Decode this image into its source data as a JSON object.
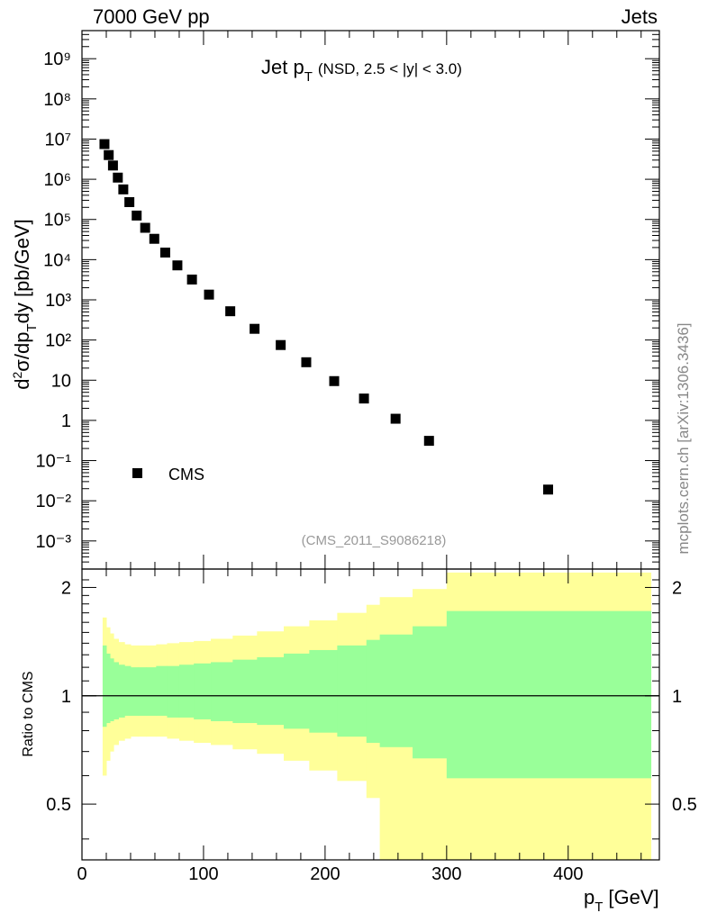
{
  "header": {
    "left": "7000 GeV pp",
    "right": "Jets"
  },
  "side_text": "mcplots.cern.ch [arXiv:1306.3436]",
  "chart_data": [
    {
      "type": "scatter",
      "title_main": "Jet p",
      "title_sub": "T",
      "title_cond": "(NSD, 2.5 < |y| < 3.0)",
      "ylabel": "d²σ/dp_T dy [pb/GeV]",
      "yscale": "log",
      "ylim": [
        0.0002,
        5000000000
      ],
      "xlim": [
        0,
        475
      ],
      "ytick_labels": [
        "10⁻³",
        "10⁻²",
        "10⁻¹",
        "1",
        "10",
        "10²",
        "10³",
        "10⁴",
        "10⁵",
        "10⁶",
        "10⁷",
        "10⁸",
        "10⁹"
      ],
      "ytick_values": [
        0.001,
        0.01,
        0.1,
        1,
        10,
        100,
        1000,
        10000,
        100000,
        1000000,
        10000000,
        100000000,
        1000000000
      ],
      "legend": {
        "label": "CMS",
        "placement": "bottom-left"
      },
      "watermark": "(CMS_2011_S9086218)",
      "series": [
        {
          "name": "CMS",
          "points": [
            {
              "x": 18.5,
              "y": 7500000
            },
            {
              "x": 22,
              "y": 4000000
            },
            {
              "x": 25.5,
              "y": 2200000
            },
            {
              "x": 29.5,
              "y": 1100000
            },
            {
              "x": 34,
              "y": 560000
            },
            {
              "x": 39,
              "y": 270000
            },
            {
              "x": 45,
              "y": 125000
            },
            {
              "x": 52,
              "y": 62000
            },
            {
              "x": 59.5,
              "y": 33000
            },
            {
              "x": 68.5,
              "y": 15000
            },
            {
              "x": 78.5,
              "y": 7200
            },
            {
              "x": 90.5,
              "y": 3200
            },
            {
              "x": 104.5,
              "y": 1350
            },
            {
              "x": 122,
              "y": 520
            },
            {
              "x": 142,
              "y": 190
            },
            {
              "x": 163.5,
              "y": 75
            },
            {
              "x": 184.5,
              "y": 28
            },
            {
              "x": 207.5,
              "y": 9.5
            },
            {
              "x": 232,
              "y": 3.5
            },
            {
              "x": 258,
              "y": 1.1
            },
            {
              "x": 285.5,
              "y": 0.31
            },
            {
              "x": 383.5,
              "y": 0.019
            }
          ]
        }
      ]
    },
    {
      "type": "area",
      "ylabel": "Ratio to CMS",
      "xlabel": "p_T [GeV]",
      "xlim": [
        0,
        475
      ],
      "ylim": [
        0.35,
        2.25
      ],
      "xtick_labels": [
        "0",
        "100",
        "200",
        "300",
        "400"
      ],
      "xtick_values": [
        0,
        100,
        200,
        300,
        400
      ],
      "ytick_labels": [
        "0.5",
        "1",
        "2"
      ],
      "ytick_values": [
        0.5,
        1,
        2
      ],
      "reference": 1,
      "colors": {
        "outer_band": "#ffff99",
        "inner_band": "#99ff99"
      },
      "bins": [
        {
          "x0": 17,
          "x1": 20,
          "inner_hi": 1.38,
          "inner_lo": 0.82,
          "outer_hi": 1.65,
          "outer_lo": 0.6
        },
        {
          "x0": 20,
          "x1": 23,
          "inner_hi": 1.31,
          "inner_lo": 0.84,
          "outer_hi": 1.55,
          "outer_lo": 0.66
        },
        {
          "x0": 23,
          "x1": 26,
          "inner_hi": 1.27,
          "inner_lo": 0.85,
          "outer_hi": 1.49,
          "outer_lo": 0.7
        },
        {
          "x0": 26,
          "x1": 30,
          "inner_hi": 1.24,
          "inner_lo": 0.86,
          "outer_hi": 1.44,
          "outer_lo": 0.73
        },
        {
          "x0": 30,
          "x1": 35,
          "inner_hi": 1.22,
          "inner_lo": 0.87,
          "outer_hi": 1.41,
          "outer_lo": 0.75
        },
        {
          "x0": 35,
          "x1": 40,
          "inner_hi": 1.21,
          "inner_lo": 0.88,
          "outer_hi": 1.39,
          "outer_lo": 0.76
        },
        {
          "x0": 40,
          "x1": 46,
          "inner_hi": 1.2,
          "inner_lo": 0.88,
          "outer_hi": 1.38,
          "outer_lo": 0.77
        },
        {
          "x0": 46,
          "x1": 53,
          "inner_hi": 1.2,
          "inner_lo": 0.88,
          "outer_hi": 1.38,
          "outer_lo": 0.77
        },
        {
          "x0": 53,
          "x1": 61,
          "inner_hi": 1.2,
          "inner_lo": 0.88,
          "outer_hi": 1.38,
          "outer_lo": 0.77
        },
        {
          "x0": 61,
          "x1": 70,
          "inner_hi": 1.21,
          "inner_lo": 0.88,
          "outer_hi": 1.39,
          "outer_lo": 0.77
        },
        {
          "x0": 70,
          "x1": 80,
          "inner_hi": 1.21,
          "inner_lo": 0.87,
          "outer_hi": 1.4,
          "outer_lo": 0.76
        },
        {
          "x0": 80,
          "x1": 92,
          "inner_hi": 1.22,
          "inner_lo": 0.87,
          "outer_hi": 1.41,
          "outer_lo": 0.75
        },
        {
          "x0": 92,
          "x1": 106,
          "inner_hi": 1.23,
          "inner_lo": 0.86,
          "outer_hi": 1.42,
          "outer_lo": 0.74
        },
        {
          "x0": 106,
          "x1": 124,
          "inner_hi": 1.24,
          "inner_lo": 0.85,
          "outer_hi": 1.44,
          "outer_lo": 0.73
        },
        {
          "x0": 124,
          "x1": 144,
          "inner_hi": 1.26,
          "inner_lo": 0.84,
          "outer_hi": 1.47,
          "outer_lo": 0.71
        },
        {
          "x0": 144,
          "x1": 166,
          "inner_hi": 1.28,
          "inner_lo": 0.83,
          "outer_hi": 1.51,
          "outer_lo": 0.69
        },
        {
          "x0": 166,
          "x1": 187,
          "inner_hi": 1.31,
          "inner_lo": 0.81,
          "outer_hi": 1.56,
          "outer_lo": 0.66
        },
        {
          "x0": 187,
          "x1": 210,
          "inner_hi": 1.34,
          "inner_lo": 0.79,
          "outer_hi": 1.62,
          "outer_lo": 0.62
        },
        {
          "x0": 210,
          "x1": 234,
          "inner_hi": 1.38,
          "inner_lo": 0.77,
          "outer_hi": 1.7,
          "outer_lo": 0.58
        },
        {
          "x0": 234,
          "x1": 245,
          "inner_hi": 1.43,
          "inner_lo": 0.74,
          "outer_hi": 1.79,
          "outer_lo": 0.52
        },
        {
          "x0": 245,
          "x1": 272,
          "inner_hi": 1.48,
          "inner_lo": 0.72,
          "outer_hi": 1.88,
          "outer_lo": 0.35
        },
        {
          "x0": 272,
          "x1": 300,
          "inner_hi": 1.56,
          "inner_lo": 0.67,
          "outer_hi": 1.98,
          "outer_lo": 0.35
        },
        {
          "x0": 300,
          "x1": 468,
          "inner_hi": 1.72,
          "inner_lo": 0.59,
          "outer_hi": 2.2,
          "outer_lo": 0.35
        }
      ]
    }
  ]
}
